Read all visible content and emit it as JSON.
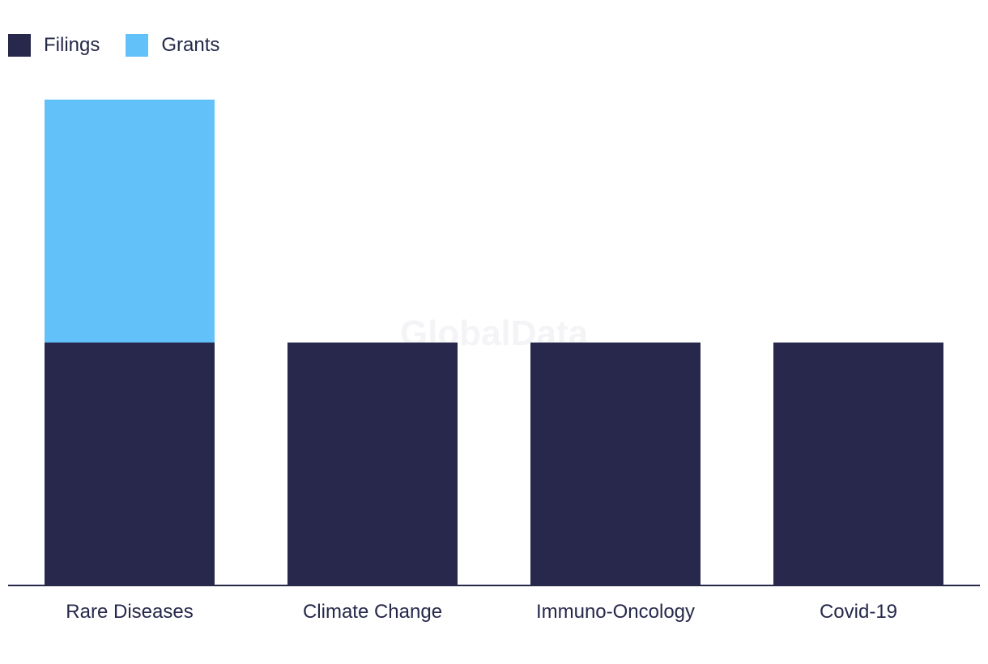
{
  "chart_data": {
    "type": "bar",
    "stacked": true,
    "categories": [
      "Rare Diseases",
      "Climate Change",
      "Immuno-Oncology",
      "Covid-19"
    ],
    "series": [
      {
        "name": "Filings",
        "values": [
          1,
          1,
          1,
          1
        ],
        "color": "#27284b"
      },
      {
        "name": "Grants",
        "values": [
          1,
          0,
          0,
          0
        ],
        "color": "#63c1fa"
      }
    ],
    "ylim": [
      0,
      2
    ],
    "grid": false,
    "legend_position": "top-left",
    "watermark": "GlobalData"
  }
}
